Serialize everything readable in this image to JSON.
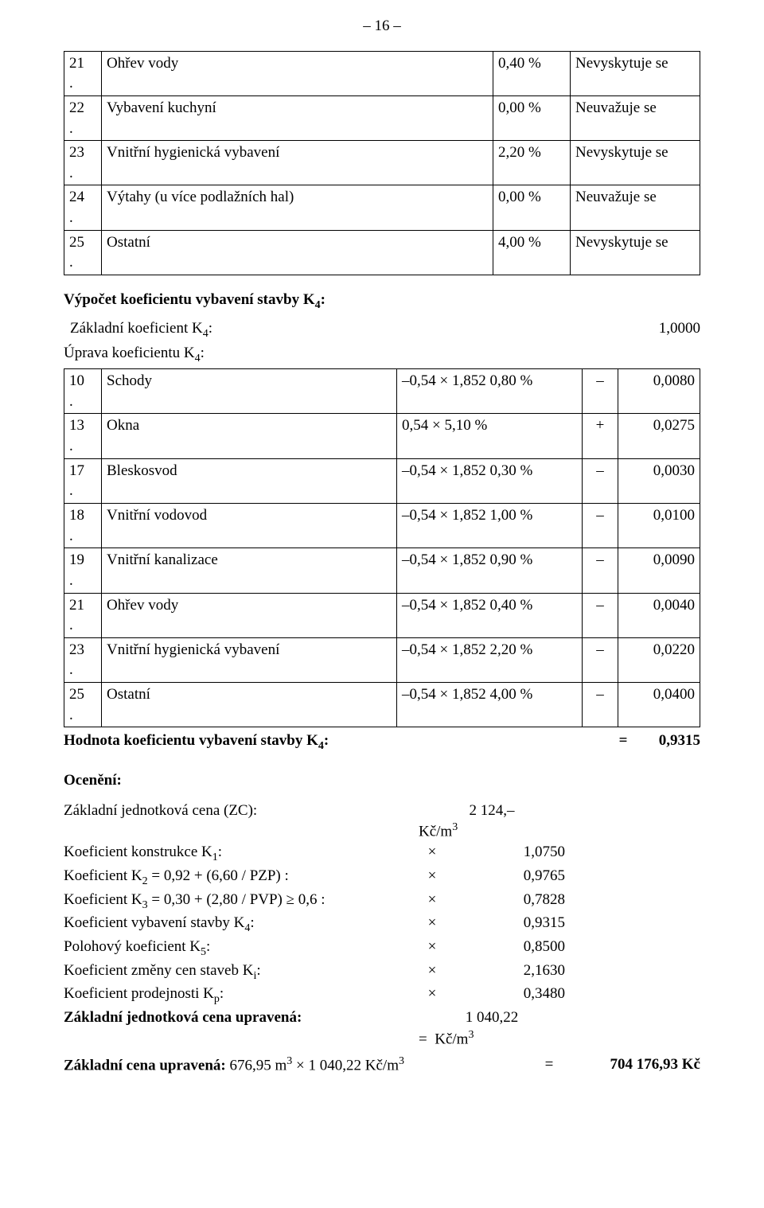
{
  "page_number_label": "– 16 –",
  "table1": {
    "rows": [
      {
        "n": "21",
        "dot": ".",
        "name": "Ohřev vody",
        "pct": "0,40 %",
        "desc": "Nevyskytuje se"
      },
      {
        "n": "22",
        "dot": ".",
        "name": "Vybavení kuchyní",
        "pct": "0,00 %",
        "desc": "Neuvažuje se"
      },
      {
        "n": "23",
        "dot": ".",
        "name": "Vnitřní hygienická vybavení",
        "pct": "2,20 %",
        "desc": "Nevyskytuje se"
      },
      {
        "n": "24",
        "dot": ".",
        "name": "Výtahy (u více podlažních hal)",
        "pct": "0,00 %",
        "desc": "Neuvažuje se"
      },
      {
        "n": "25",
        "dot": ".",
        "name": "Ostatní",
        "pct": "4,00 %",
        "desc": "Nevyskytuje se"
      }
    ]
  },
  "vypocet_heading": "Výpočet koeficientu vybavení stavby K",
  "k4_sub": "4",
  "colon": ":",
  "zakladni_koef_label": "Základní koeficient K",
  "zakladni_koef_value": "1,0000",
  "uprava_label": "Úprava koeficientu K",
  "table2": {
    "rows": [
      {
        "n": "10",
        "dot": ".",
        "name": "Schody",
        "val": "–0,54 × 1,852 0,80 %",
        "sign": "–",
        "res": "0,0080"
      },
      {
        "n": "13",
        "dot": ".",
        "name": "Okna",
        "val": "0,54 × 5,10 %",
        "sign": "+",
        "res": "0,0275"
      },
      {
        "n": "17",
        "dot": ".",
        "name": "Bleskosvod",
        "val": "–0,54 × 1,852 0,30 %",
        "sign": "–",
        "res": "0,0030"
      },
      {
        "n": "18",
        "dot": ".",
        "name": "Vnitřní vodovod",
        "val": "–0,54 × 1,852 1,00 %",
        "sign": "–",
        "res": "0,0100"
      },
      {
        "n": "19",
        "dot": ".",
        "name": "Vnitřní kanalizace",
        "val": "–0,54 × 1,852 0,90 %",
        "sign": "–",
        "res": "0,0090"
      },
      {
        "n": "21",
        "dot": ".",
        "name": "Ohřev vody",
        "val": "–0,54 × 1,852 0,40 %",
        "sign": "–",
        "res": "0,0040"
      },
      {
        "n": "23",
        "dot": ".",
        "name": "Vnitřní hygienická vybavení",
        "val": "–0,54 × 1,852 2,20 %",
        "sign": "–",
        "res": "0,0220"
      },
      {
        "n": "25",
        "dot": ".",
        "name": "Ostatní",
        "val": "–0,54 × 1,852 4,00 %",
        "sign": "–",
        "res": "0,0400"
      }
    ]
  },
  "hodnota_label": "Hodnota koeficientu vybavení stavby K",
  "hodnota_eq": "=",
  "hodnota_value": "0,9315",
  "oceneni_heading": "Ocenění:",
  "calc": {
    "zc_label": "Základní jednotková cena (ZC):",
    "zc_value": "2 124,–",
    "zc_unit_prefix": "Kč/m",
    "zc_unit_exp": "3",
    "rows": [
      {
        "label": "Koeficient konstrukce K",
        "sub": "1",
        "suffix": ":",
        "sym": "×",
        "val": "1,0750"
      },
      {
        "label": "Koeficient K",
        "sub": "2",
        "suffix": " = 0,92 + (6,60 / PZP) :",
        "sym": "×",
        "val": "0,9765"
      },
      {
        "label": "Koeficient K",
        "sub": "3",
        "suffix": " = 0,30 + (2,80 / PVP) ≥ 0,6 :",
        "sym": "×",
        "val": "0,7828"
      },
      {
        "label": "Koeficient vybavení stavby K",
        "sub": "4",
        "suffix": ":",
        "sym": "×",
        "val": "0,9315"
      },
      {
        "label": "Polohový koeficient K",
        "sub": "5",
        "suffix": ":",
        "sym": "×",
        "val": "0,8500"
      },
      {
        "label": "Koeficient změny cen staveb K",
        "sub": "i",
        "suffix": ":",
        "sym": "×",
        "val": "2,1630"
      },
      {
        "label": "Koeficient prodejnosti K",
        "sub": "p",
        "suffix": ":",
        "sym": "×",
        "val": "0,3480"
      }
    ],
    "upr_label": "Základní jednotková cena upravená:",
    "upr_value": "1 040,22",
    "upr_eq": "=",
    "upr_unit_prefix": "Kč/m",
    "upr_unit_exp": "3",
    "final_label_prefix": "Základní cena upravená: ",
    "final_expr_a": "676,95 m",
    "final_exp_a": "3",
    "final_times": " × ",
    "final_expr_b": "1 040,22 Kč/m",
    "final_exp_b": "3",
    "final_eq": "=",
    "final_value": "704 176,93 Kč"
  }
}
